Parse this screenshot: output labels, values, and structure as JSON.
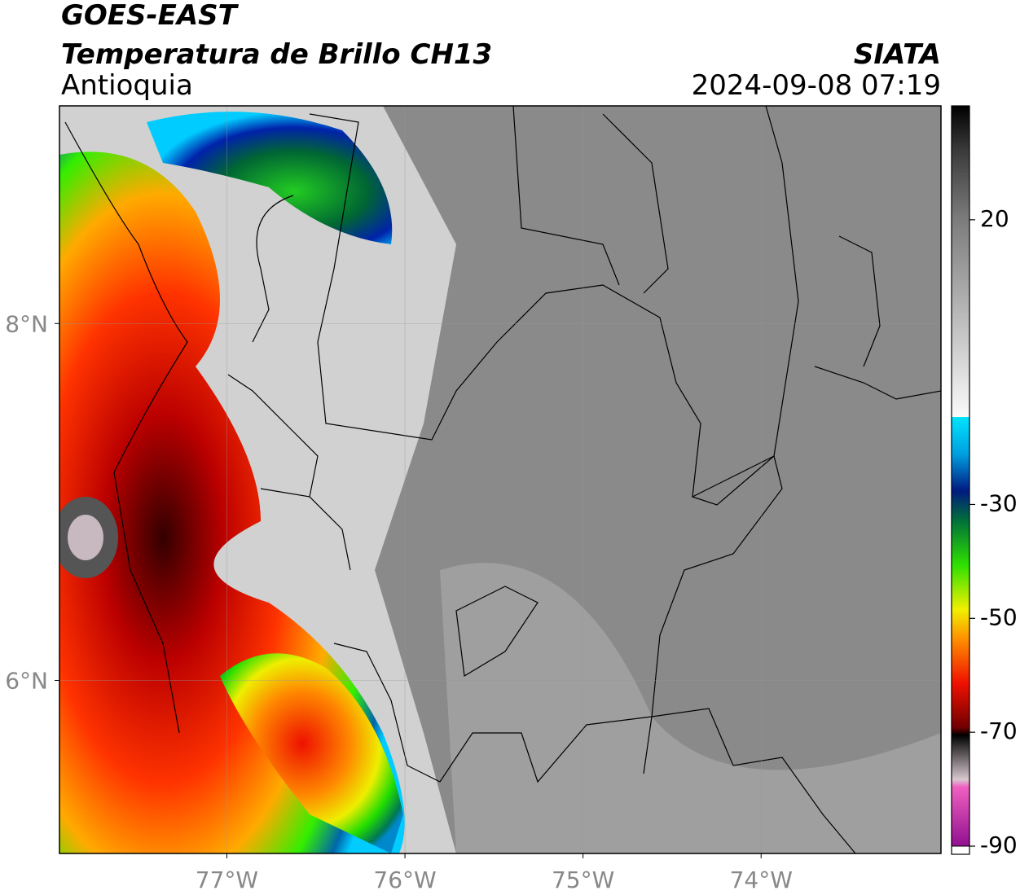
{
  "header": {
    "title": "GOES-EAST",
    "subtitle": "Temperatura de Brillo CH13",
    "region": "Antioquia",
    "source": "SIATA",
    "datetime": "2024-09-08 07:19"
  },
  "map": {
    "xlim": [
      -77.94,
      -72.99
    ],
    "ylim": [
      5.03,
      9.22
    ],
    "xticks": [
      {
        "value": -77,
        "label": "77°W"
      },
      {
        "value": -76,
        "label": "76°W"
      },
      {
        "value": -75,
        "label": "75°W"
      },
      {
        "value": -74,
        "label": "74°W"
      }
    ],
    "yticks": [
      {
        "value": 8,
        "label": "8°N"
      },
      {
        "value": 6,
        "label": "6°N"
      }
    ]
  },
  "colorbar": {
    "lim": [
      -90,
      40
    ],
    "ticks": [
      20,
      -30,
      -50,
      -70,
      -90
    ]
  }
}
